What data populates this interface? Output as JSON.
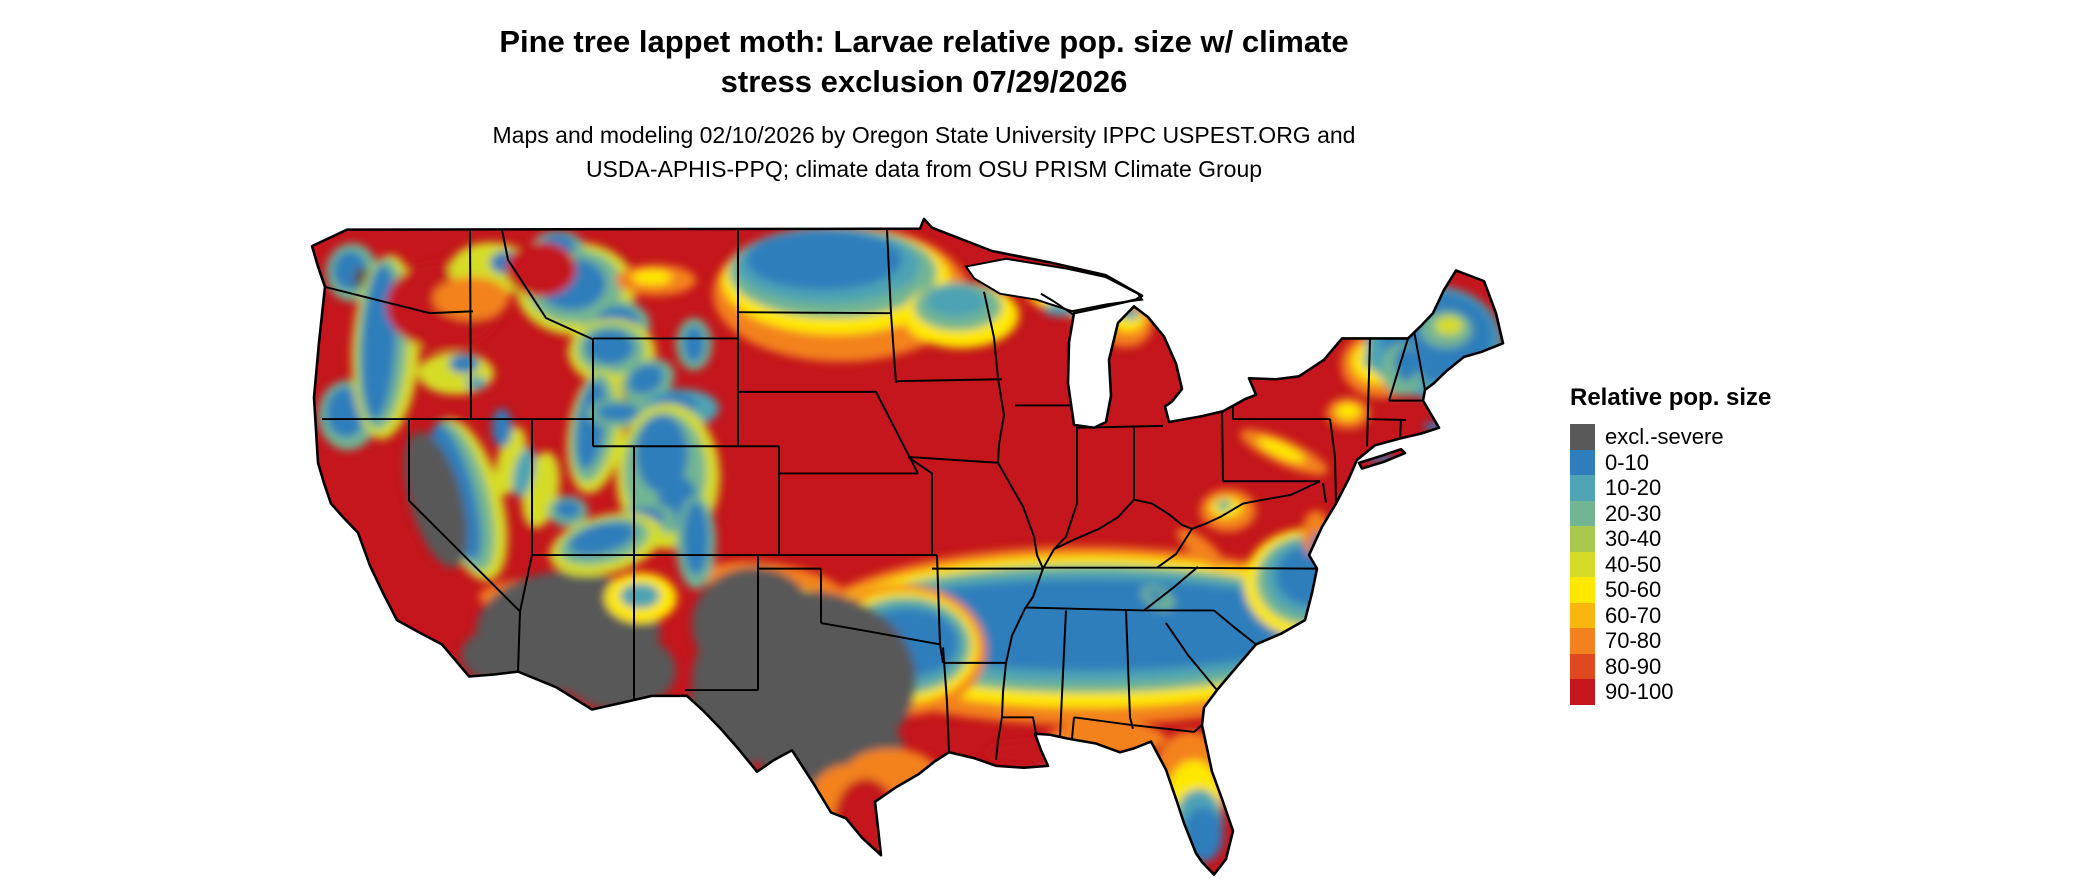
{
  "header": {
    "title_line1": "Pine tree lappet moth: Larvae relative pop. size w/ climate",
    "title_line2": "stress exclusion 07/29/2026",
    "subtitle_line1": "Maps and modeling 02/10/2026 by Oregon State University IPPC USPEST.ORG and",
    "subtitle_line2": "USDA-APHIS-PPQ; climate data from OSU PRISM Climate Group"
  },
  "legend": {
    "title": "Relative pop. size",
    "entries": [
      {
        "label": "excl.-severe",
        "color": "#595959"
      },
      {
        "label": "0-10",
        "color": "#2e7ebc"
      },
      {
        "label": "10-20",
        "color": "#4ea3b4"
      },
      {
        "label": "20-30",
        "color": "#72b593"
      },
      {
        "label": "30-40",
        "color": "#a9c94e"
      },
      {
        "label": "40-50",
        "color": "#d5dc28"
      },
      {
        "label": "50-60",
        "color": "#ffe800"
      },
      {
        "label": "60-70",
        "color": "#fbb50f"
      },
      {
        "label": "70-80",
        "color": "#f3821e"
      },
      {
        "label": "80-90",
        "color": "#e0481f"
      },
      {
        "label": "90-100",
        "color": "#c4161c"
      }
    ]
  }
}
